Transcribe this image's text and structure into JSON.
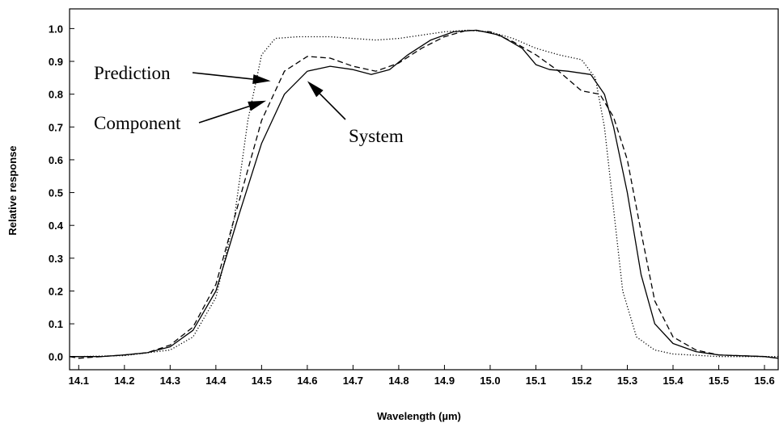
{
  "chart_data": {
    "type": "line",
    "title": "",
    "xlabel": "Wavelength (µm)",
    "ylabel": "Relative response",
    "xlim": [
      14.08,
      15.63
    ],
    "ylim": [
      -0.04,
      1.06
    ],
    "grid": false,
    "xticks": [
      "14.1",
      "14.2",
      "14.3",
      "14.4",
      "14.5",
      "14.6",
      "14.7",
      "14.8",
      "14.9",
      "15.0",
      "15.1",
      "15.2",
      "15.3",
      "15.4",
      "15.5",
      "15.6"
    ],
    "yticks": [
      "0.0",
      "0.1",
      "0.2",
      "0.3",
      "0.4",
      "0.5",
      "0.6",
      "0.7",
      "0.8",
      "0.9",
      "1.0"
    ],
    "series": [
      {
        "name": "System",
        "style": "solid",
        "points": [
          [
            14.08,
            0.0
          ],
          [
            14.1,
            0.0
          ],
          [
            14.15,
            0.0
          ],
          [
            14.2,
            0.005
          ],
          [
            14.25,
            0.012
          ],
          [
            14.3,
            0.03
          ],
          [
            14.35,
            0.08
          ],
          [
            14.4,
            0.2
          ],
          [
            14.45,
            0.43
          ],
          [
            14.5,
            0.65
          ],
          [
            14.55,
            0.8
          ],
          [
            14.6,
            0.87
          ],
          [
            14.65,
            0.885
          ],
          [
            14.7,
            0.875
          ],
          [
            14.74,
            0.86
          ],
          [
            14.78,
            0.875
          ],
          [
            14.82,
            0.92
          ],
          [
            14.87,
            0.965
          ],
          [
            14.92,
            0.99
          ],
          [
            14.97,
            0.995
          ],
          [
            15.02,
            0.98
          ],
          [
            15.07,
            0.94
          ],
          [
            15.1,
            0.89
          ],
          [
            15.13,
            0.875
          ],
          [
            15.17,
            0.87
          ],
          [
            15.22,
            0.86
          ],
          [
            15.25,
            0.8
          ],
          [
            15.27,
            0.7
          ],
          [
            15.3,
            0.5
          ],
          [
            15.33,
            0.25
          ],
          [
            15.36,
            0.1
          ],
          [
            15.4,
            0.04
          ],
          [
            15.45,
            0.015
          ],
          [
            15.5,
            0.005
          ],
          [
            15.6,
            0.0
          ],
          [
            15.63,
            -0.005
          ]
        ]
      },
      {
        "name": "Component",
        "style": "dashed",
        "points": [
          [
            14.08,
            0.0
          ],
          [
            14.1,
            -0.005
          ],
          [
            14.15,
            0.0
          ],
          [
            14.2,
            0.005
          ],
          [
            14.25,
            0.012
          ],
          [
            14.3,
            0.035
          ],
          [
            14.35,
            0.09
          ],
          [
            14.4,
            0.22
          ],
          [
            14.45,
            0.47
          ],
          [
            14.5,
            0.72
          ],
          [
            14.55,
            0.87
          ],
          [
            14.6,
            0.915
          ],
          [
            14.65,
            0.91
          ],
          [
            14.7,
            0.885
          ],
          [
            14.75,
            0.87
          ],
          [
            14.8,
            0.895
          ],
          [
            14.85,
            0.94
          ],
          [
            14.9,
            0.975
          ],
          [
            14.95,
            0.995
          ],
          [
            15.0,
            0.99
          ],
          [
            15.05,
            0.96
          ],
          [
            15.1,
            0.92
          ],
          [
            15.15,
            0.87
          ],
          [
            15.2,
            0.81
          ],
          [
            15.24,
            0.8
          ],
          [
            15.27,
            0.73
          ],
          [
            15.3,
            0.6
          ],
          [
            15.33,
            0.38
          ],
          [
            15.36,
            0.17
          ],
          [
            15.4,
            0.06
          ],
          [
            15.45,
            0.02
          ],
          [
            15.5,
            0.005
          ],
          [
            15.6,
            0.0
          ],
          [
            15.63,
            -0.005
          ]
        ]
      },
      {
        "name": "Prediction",
        "style": "dotted",
        "points": [
          [
            14.08,
            0.0
          ],
          [
            14.1,
            0.0
          ],
          [
            14.2,
            0.003
          ],
          [
            14.3,
            0.02
          ],
          [
            14.35,
            0.06
          ],
          [
            14.4,
            0.18
          ],
          [
            14.44,
            0.42
          ],
          [
            14.47,
            0.72
          ],
          [
            14.5,
            0.92
          ],
          [
            14.53,
            0.97
          ],
          [
            14.58,
            0.975
          ],
          [
            14.65,
            0.975
          ],
          [
            14.7,
            0.97
          ],
          [
            14.75,
            0.965
          ],
          [
            14.8,
            0.97
          ],
          [
            14.85,
            0.98
          ],
          [
            14.9,
            0.99
          ],
          [
            14.95,
            0.995
          ],
          [
            15.0,
            0.99
          ],
          [
            15.05,
            0.97
          ],
          [
            15.1,
            0.94
          ],
          [
            15.15,
            0.92
          ],
          [
            15.2,
            0.905
          ],
          [
            15.23,
            0.85
          ],
          [
            15.25,
            0.7
          ],
          [
            15.27,
            0.45
          ],
          [
            15.29,
            0.2
          ],
          [
            15.32,
            0.06
          ],
          [
            15.36,
            0.02
          ],
          [
            15.4,
            0.008
          ],
          [
            15.5,
            0.0
          ],
          [
            15.63,
            0.0
          ]
        ]
      }
    ],
    "annotations": [
      {
        "text": "Prediction",
        "x_data": 14.52,
        "y_data": 0.84
      },
      {
        "text": "Component",
        "x_data": 14.51,
        "y_data": 0.78
      },
      {
        "text": "System",
        "x_data": 14.6,
        "y_data": 0.84
      }
    ]
  }
}
